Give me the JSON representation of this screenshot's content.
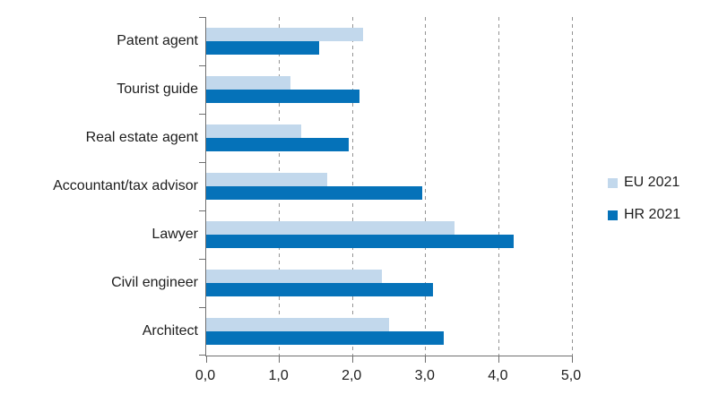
{
  "chart_data": {
    "type": "bar",
    "orientation": "horizontal",
    "title": "",
    "xlabel": "",
    "ylabel": "",
    "categories": [
      "Patent agent",
      "Tourist guide",
      "Real estate agent",
      "Accountant/tax advisor",
      "Lawyer",
      "Civil engineer",
      "Architect"
    ],
    "series": [
      {
        "name": "EU 2021",
        "color": "#c2d8ec",
        "values": [
          2.15,
          1.15,
          1.3,
          1.65,
          3.4,
          2.4,
          2.5
        ]
      },
      {
        "name": "HR 2021",
        "color": "#0572b9",
        "values": [
          1.55,
          2.1,
          1.95,
          2.95,
          4.2,
          3.1,
          3.25
        ]
      }
    ],
    "xlim": [
      0,
      5
    ],
    "x_ticks": [
      "0,0",
      "1,0",
      "2,0",
      "3,0",
      "4,0",
      "5,0"
    ],
    "grid": "vertical-dashed",
    "legend_position": "right"
  },
  "colors": {
    "background": "#ffffff",
    "axis": "#6f6f6f",
    "gridline": "#949494",
    "text": "#1d1d1d",
    "eu_bar": "#c2d8ec",
    "hr_bar": "#0572b9"
  }
}
